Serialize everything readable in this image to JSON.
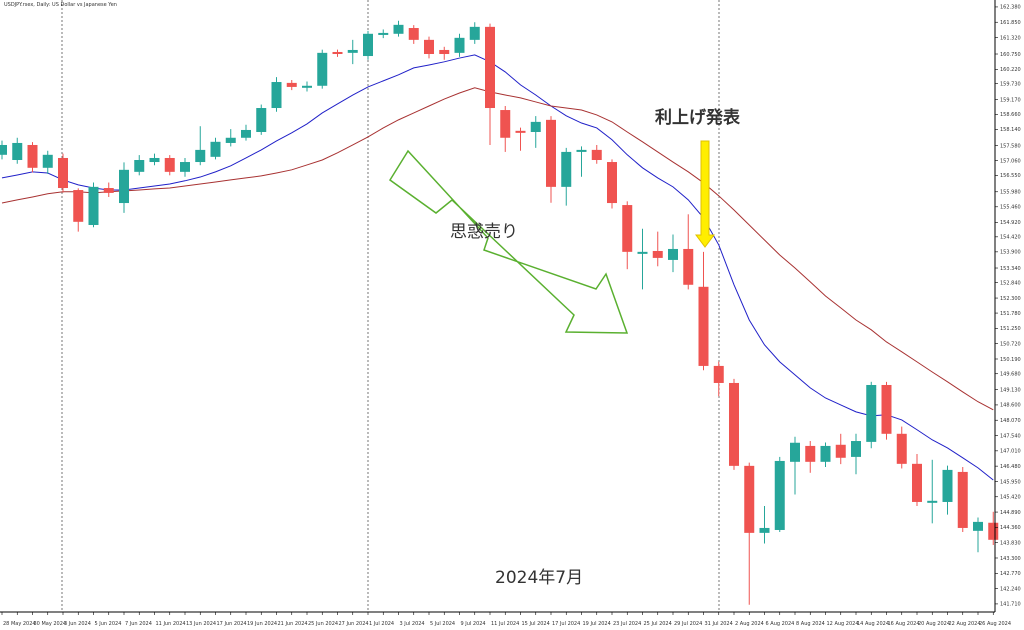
{
  "chart_data": {
    "type": "candlestick",
    "title": "USDJPY.rsex, Daily: US Dollar vs Japanese Yen",
    "annotations": [
      "利上げ発表",
      "思惑売り",
      "2024年7月"
    ],
    "categories": [
      "28 May 2024",
      null,
      "30 May 2024",
      null,
      "3 Jun 2024",
      null,
      "5 Jun 2024",
      null,
      "7 Jun 2024",
      null,
      "11 Jun 2024",
      null,
      "13 Jun 2024",
      null,
      "17 Jun 2024",
      null,
      "19 Jun 2024",
      null,
      "21 Jun 2024",
      null,
      "25 Jun 2024",
      null,
      "27 Jun 2024",
      null,
      "1 Jul 2024",
      null,
      "3 Jul 2024",
      null,
      "5 Jul 2024",
      null,
      "9 Jul 2024",
      null,
      "11 Jul 2024",
      null,
      "15 Jul 2024",
      null,
      "17 Jul 2024",
      null,
      "19 Jul 2024",
      null,
      "23 Jul 2024",
      null,
      "25 Jul 2024",
      null,
      "29 Jul 2024",
      null,
      "31 Jul 2024",
      null,
      "2 Aug 2024",
      null,
      "6 Aug 2024",
      null,
      "8 Aug 2024",
      null,
      "12 Aug 2024",
      null,
      "14 Aug 2024",
      null,
      "16 Aug 2024",
      null,
      "20 Aug 2024",
      null,
      "22 Aug 2024",
      null,
      "26 Aug 2024",
      null
    ],
    "open": [
      157.26,
      157.08,
      157.6,
      156.81,
      157.15,
      156.04,
      154.83,
      156.11,
      155.59,
      156.67,
      157.01,
      157.15,
      156.67,
      157.01,
      157.19,
      157.67,
      157.85,
      158.05,
      158.88,
      159.75,
      159.58,
      159.65,
      160.82,
      160.79,
      160.68,
      161.41,
      161.45,
      161.65,
      161.24,
      160.89,
      160.79,
      161.24,
      161.69,
      158.81,
      158.09,
      158.05,
      158.47,
      156.15,
      157.36,
      157.43,
      157.01,
      155.52,
      153.83,
      153.93,
      153.62,
      154.0,
      152.69,
      149.95,
      149.36,
      146.49,
      144.17,
      144.27,
      146.63,
      147.18,
      146.63,
      147.22,
      146.8,
      147.32,
      149.29,
      147.6,
      146.56,
      145.21,
      145.24,
      146.28,
      144.24,
      144.52
    ],
    "high": [
      157.75,
      157.85,
      157.7,
      157.4,
      157.3,
      156.1,
      156.3,
      156.3,
      157.0,
      157.25,
      157.3,
      157.25,
      157.15,
      158.25,
      157.85,
      158.15,
      158.3,
      159.0,
      159.95,
      159.85,
      159.8,
      160.9,
      160.9,
      161.24,
      161.55,
      161.6,
      161.9,
      161.75,
      161.35,
      161.0,
      161.45,
      161.85,
      161.8,
      158.95,
      158.2,
      158.6,
      158.6,
      157.5,
      157.55,
      157.6,
      157.1,
      155.65,
      154.7,
      154.6,
      154.5,
      155.2,
      153.9,
      150.1,
      149.5,
      146.6,
      145.1,
      146.8,
      147.5,
      147.35,
      147.3,
      147.6,
      147.6,
      149.4,
      149.4,
      147.85,
      146.9,
      146.7,
      146.5,
      146.45,
      144.7,
      144.9
    ],
    "low": [
      157.1,
      156.95,
      156.65,
      156.6,
      155.95,
      154.6,
      154.75,
      155.8,
      155.25,
      156.55,
      156.9,
      156.55,
      156.5,
      156.9,
      157.1,
      157.55,
      157.75,
      157.95,
      158.75,
      159.5,
      159.45,
      159.55,
      160.65,
      160.4,
      160.55,
      161.3,
      161.35,
      161.1,
      160.6,
      160.55,
      160.65,
      161.1,
      157.6,
      157.36,
      157.4,
      157.5,
      155.6,
      155.5,
      156.5,
      156.95,
      155.4,
      153.3,
      152.6,
      153.4,
      153.2,
      152.6,
      149.8,
      148.9,
      146.35,
      141.68,
      143.8,
      144.2,
      145.5,
      146.25,
      146.45,
      146.55,
      146.2,
      147.1,
      147.4,
      146.4,
      145.1,
      144.5,
      144.8,
      144.2,
      143.5,
      143.75
    ],
    "close": [
      157.6,
      157.67,
      156.81,
      157.26,
      156.11,
      154.94,
      156.15,
      155.94,
      156.74,
      157.08,
      157.15,
      156.67,
      157.01,
      157.43,
      157.71,
      157.85,
      158.12,
      158.88,
      159.78,
      159.61,
      159.65,
      160.79,
      160.75,
      160.89,
      161.45,
      161.48,
      161.76,
      161.24,
      160.75,
      160.75,
      161.31,
      161.69,
      158.88,
      157.85,
      158.02,
      158.4,
      156.15,
      157.36,
      157.43,
      157.08,
      155.59,
      153.9,
      153.9,
      153.69,
      154.0,
      152.76,
      149.95,
      149.36,
      146.49,
      144.17,
      144.34,
      146.66,
      147.29,
      146.63,
      147.18,
      146.77,
      147.35,
      149.29,
      147.6,
      146.56,
      145.24,
      145.28,
      146.35,
      144.34,
      144.55,
      143.93
    ],
    "up_color": "#26a69a",
    "down_color": "#ef5350",
    "lines": [
      {
        "color": "#2020c8",
        "values": [
          156.46,
          156.56,
          156.67,
          156.63,
          156.39,
          156.22,
          156.11,
          156.04,
          156.04,
          156.11,
          156.18,
          156.25,
          156.36,
          156.49,
          156.67,
          156.88,
          157.15,
          157.43,
          157.74,
          158.02,
          158.33,
          158.71,
          159.02,
          159.33,
          159.61,
          159.82,
          160.03,
          160.27,
          160.37,
          160.48,
          160.61,
          160.72,
          160.48,
          160.13,
          159.68,
          159.33,
          158.95,
          158.61,
          158.36,
          158.19,
          157.78,
          157.26,
          156.81,
          156.46,
          156.15,
          155.7,
          155.08,
          154.14,
          152.76,
          151.54,
          150.68,
          150.09,
          149.64,
          149.19,
          148.84,
          148.6,
          148.36,
          148.22,
          148.26,
          148.08,
          147.74,
          147.39,
          147.11,
          146.77,
          146.42,
          146.0
        ]
      },
      {
        "color": "#a83232",
        "values": [
          155.59,
          155.7,
          155.8,
          155.91,
          155.98,
          155.98,
          155.94,
          155.98,
          156.01,
          156.04,
          156.08,
          156.11,
          156.18,
          156.25,
          156.32,
          156.39,
          156.46,
          156.53,
          156.63,
          156.74,
          156.91,
          157.08,
          157.33,
          157.6,
          157.88,
          158.19,
          158.47,
          158.71,
          158.95,
          159.19,
          159.4,
          159.58,
          159.44,
          159.33,
          159.23,
          159.09,
          158.95,
          158.88,
          158.81,
          158.64,
          158.4,
          158.05,
          157.71,
          157.36,
          157.01,
          156.67,
          156.29,
          155.84,
          155.35,
          154.83,
          154.31,
          153.79,
          153.34,
          152.86,
          152.37,
          151.96,
          151.54,
          151.2,
          150.78,
          150.44,
          150.09,
          149.74,
          149.4,
          149.05,
          148.71,
          148.43
        ]
      }
    ],
    "ylim": [
      141.43,
      162.62
    ],
    "yticks": [
      {
        "value": 162.38,
        "label": "162.380"
      },
      {
        "value": 161.85,
        "label": "161.850"
      },
      {
        "value": 161.32,
        "label": "161.320"
      },
      {
        "value": 160.75,
        "label": "160.750"
      },
      {
        "value": 160.22,
        "label": "160.220"
      },
      {
        "value": 159.73,
        "label": "159.730"
      },
      {
        "value": 159.17,
        "label": "159.170"
      },
      {
        "value": 158.66,
        "label": "158.660"
      },
      {
        "value": 158.14,
        "label": "158.140"
      },
      {
        "value": 157.58,
        "label": "157.580"
      },
      {
        "value": 157.06,
        "label": "157.060"
      },
      {
        "value": 156.55,
        "label": "156.550"
      },
      {
        "value": 155.98,
        "label": "155.980"
      },
      {
        "value": 155.46,
        "label": "155.460"
      },
      {
        "value": 154.92,
        "label": "154.920"
      },
      {
        "value": 154.42,
        "label": "154.420"
      },
      {
        "value": 153.9,
        "label": "153.900"
      },
      {
        "value": 153.34,
        "label": "153.340"
      },
      {
        "value": 152.84,
        "label": "152.840"
      },
      {
        "value": 152.3,
        "label": "152.300"
      },
      {
        "value": 151.78,
        "label": "151.780"
      },
      {
        "value": 151.25,
        "label": "151.250"
      },
      {
        "value": 150.72,
        "label": "150.720"
      },
      {
        "value": 150.19,
        "label": "150.190"
      },
      {
        "value": 149.68,
        "label": "149.680"
      },
      {
        "value": 149.13,
        "label": "149.130"
      },
      {
        "value": 148.6,
        "label": "148.600"
      },
      {
        "value": 148.07,
        "label": "148.070"
      },
      {
        "value": 147.54,
        "label": "147.540"
      },
      {
        "value": 147.01,
        "label": "147.010"
      },
      {
        "value": 146.48,
        "label": "146.480"
      },
      {
        "value": 145.95,
        "label": "145.950"
      },
      {
        "value": 145.42,
        "label": "145.420"
      },
      {
        "value": 144.89,
        "label": "144.890"
      },
      {
        "value": 144.36,
        "label": "144.360"
      },
      {
        "value": 143.83,
        "label": "143.830"
      },
      {
        "value": 143.3,
        "label": "143.300"
      },
      {
        "value": 142.77,
        "label": "142.770"
      },
      {
        "value": 142.24,
        "label": "142.240"
      },
      {
        "value": 141.71,
        "label": "141.710"
      }
    ]
  }
}
